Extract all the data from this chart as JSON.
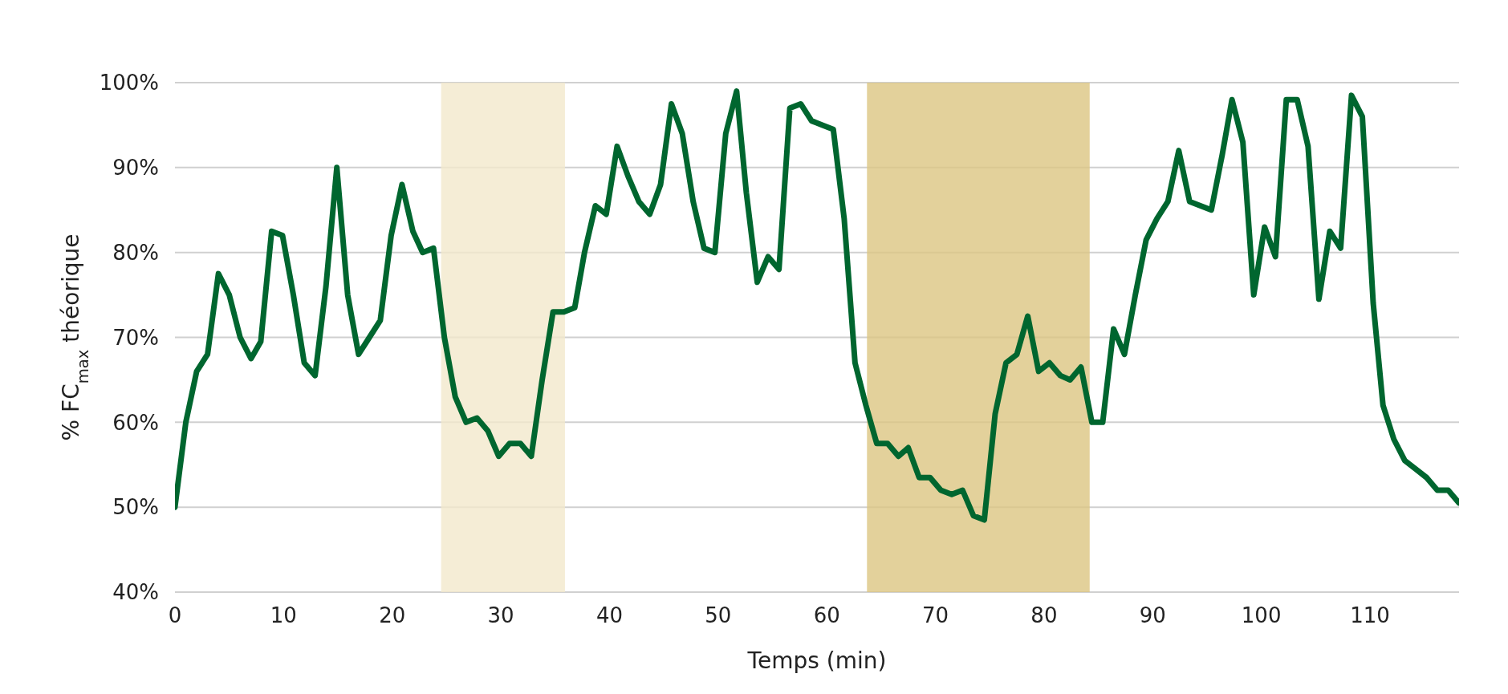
{
  "chart_data": {
    "type": "line",
    "xlabel": "Temps (min)",
    "ylabel": "% FC$_{max}$ théorique",
    "x": [
      0,
      1,
      2,
      3,
      4,
      5,
      6,
      7,
      7.9,
      8.9,
      9.9,
      10.9,
      11.9,
      12.9,
      13.9,
      14.9,
      15.9,
      16.9,
      17.9,
      18.9,
      19.9,
      20.9,
      21.9,
      22.8,
      23.8,
      24.8,
      25.8,
      26.8,
      27.8,
      28.8,
      29.8,
      30.8,
      31.8,
      32.8,
      33.8,
      34.8,
      35.8,
      36.8,
      37.7,
      38.7,
      39.7,
      40.7,
      41.7,
      42.7,
      43.7,
      44.7,
      45.7,
      46.7,
      47.7,
      48.7,
      49.7,
      50.7,
      51.7,
      52.6,
      53.6,
      54.6,
      55.6,
      56.6,
      57.6,
      58.6,
      59.6,
      60.6,
      61.6,
      62.6,
      63.6,
      64.6,
      65.6,
      66.6,
      67.5,
      68.5,
      69.5,
      70.5,
      71.5,
      72.5,
      73.5,
      74.5,
      75.5,
      76.5,
      77.5,
      78.5,
      79.5,
      80.5,
      81.5,
      82.4,
      83.4,
      84.4,
      85.4,
      86.4,
      87.4,
      88.4,
      89.4,
      90.4,
      91.4,
      92.4,
      93.4,
      94.4,
      95.4,
      96.4,
      97.3,
      98.3,
      99.3,
      100.3,
      101.3,
      102.3,
      103.3,
      104.3,
      105.3,
      106.3,
      107.3,
      108.3,
      109.3,
      110.3,
      111.2,
      112.2,
      113.2,
      114.2,
      115.2,
      116.2,
      117.2,
      118.2
    ],
    "series": [
      {
        "color": "#00662f",
        "values": [
          50,
          60,
          66,
          68,
          77.5,
          75,
          70,
          67.5,
          69.5,
          82.5,
          82,
          75,
          67,
          65.5,
          76,
          90,
          75,
          68,
          70,
          72,
          82,
          88,
          82.5,
          80,
          80.5,
          70,
          63,
          60,
          60.5,
          59,
          56,
          57.5,
          57.5,
          56,
          65,
          73,
          73,
          73.5,
          80,
          85.5,
          84.5,
          92.5,
          89,
          86,
          84.5,
          88,
          97.5,
          94,
          86,
          80.5,
          80,
          94,
          99,
          87,
          76.5,
          79.5,
          78,
          97,
          97.5,
          95.5,
          95,
          94.5,
          84,
          67,
          62,
          57.5,
          57.5,
          56,
          57,
          53.5,
          53.5,
          52,
          51.5,
          52,
          49,
          48.5,
          61,
          67,
          68,
          72.5,
          66,
          67,
          65.5,
          65,
          66.5,
          60,
          60,
          71,
          68,
          75,
          81.5,
          84,
          86,
          92,
          86,
          85.5,
          85,
          91.5,
          98,
          93,
          75,
          83,
          79.5,
          98,
          98,
          92.5,
          74.5,
          82.5,
          80.5,
          98.5,
          96,
          74,
          62,
          58,
          55.5,
          54.5,
          53.5,
          52,
          52,
          50.5
        ]
      }
    ],
    "xlim": [
      0,
      118.2
    ],
    "xticks": [
      0,
      10,
      20,
      30,
      40,
      50,
      60,
      70,
      80,
      90,
      100,
      110
    ],
    "ylim": [
      40,
      100
    ],
    "yticks": [
      {
        "value": 40,
        "label": "40%"
      },
      {
        "value": 50,
        "label": "50%"
      },
      {
        "value": 60,
        "label": "60%"
      },
      {
        "value": 70,
        "label": "70%"
      },
      {
        "value": 80,
        "label": "80%"
      },
      {
        "value": 90,
        "label": "90%"
      },
      {
        "value": 100,
        "label": "100%"
      }
    ],
    "bands": [
      {
        "axis": "x",
        "from": 24.5,
        "to": 35.9,
        "color": "#f2e8cc"
      },
      {
        "axis": "x",
        "from": 63.7,
        "to": 84.2,
        "color": "#dcc582"
      }
    ],
    "grid": "y",
    "marker": "none",
    "line_style": "solid"
  }
}
